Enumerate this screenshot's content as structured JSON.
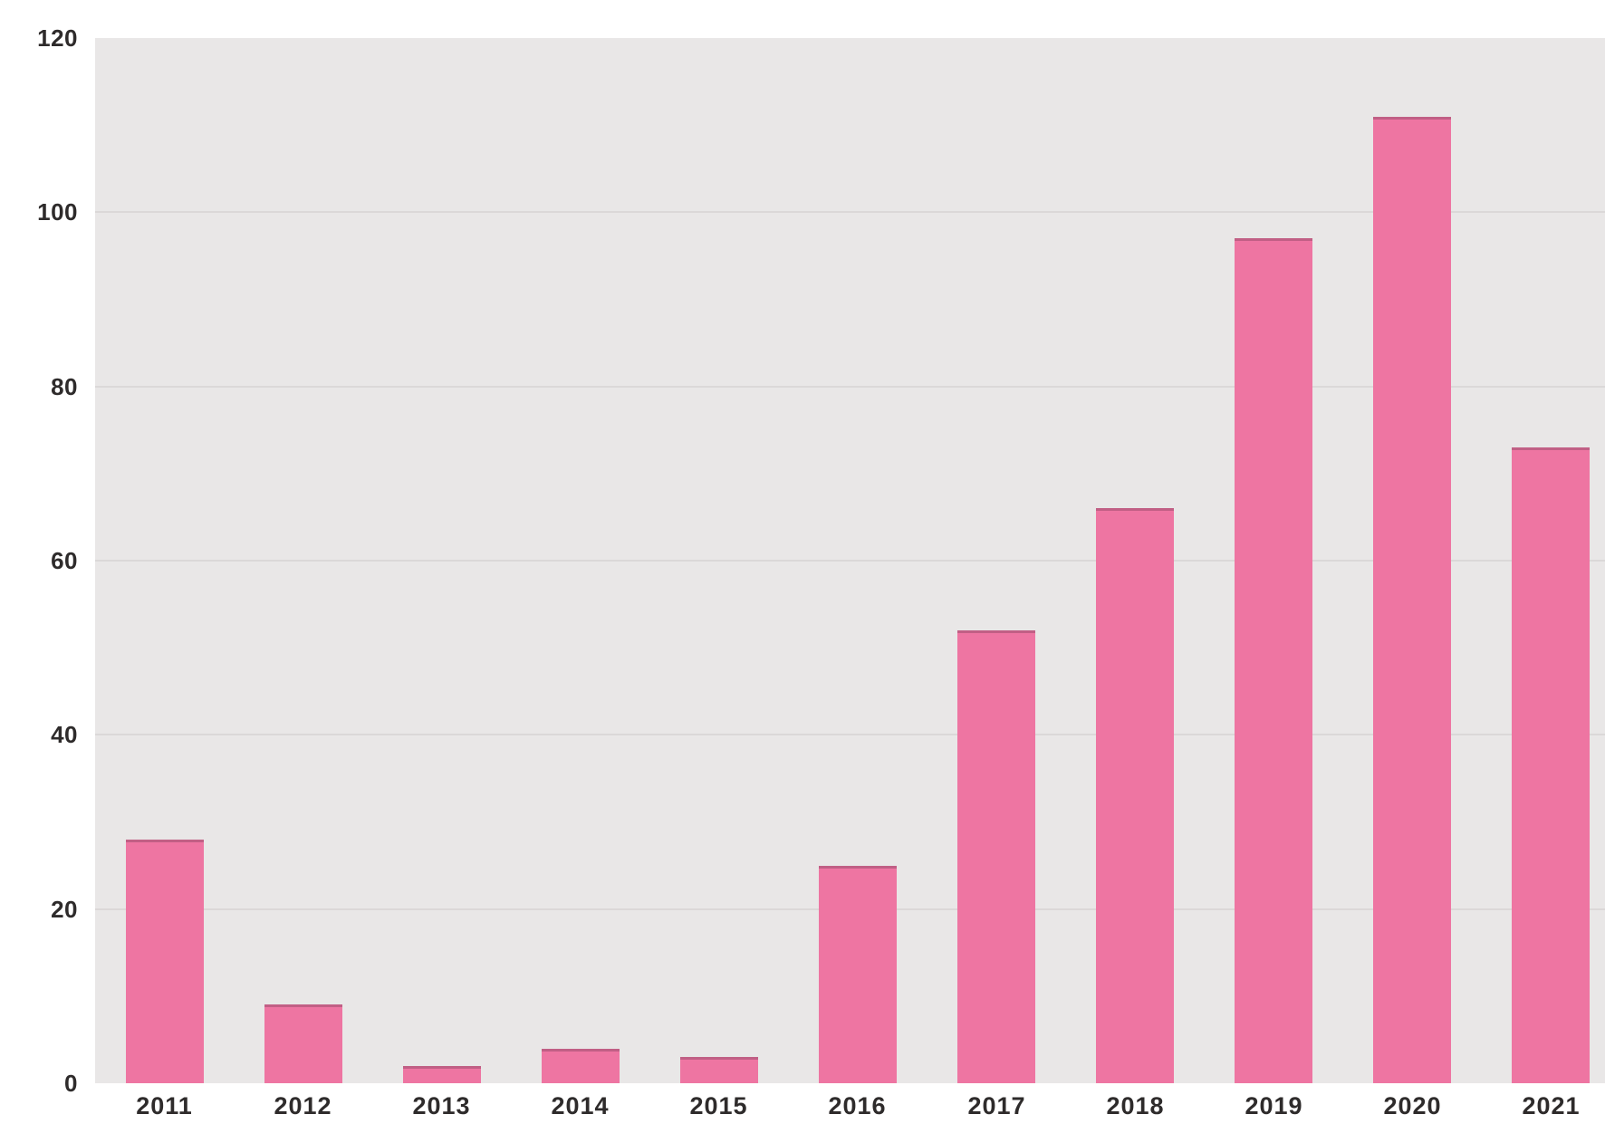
{
  "chart_data": {
    "type": "bar",
    "categories": [
      "2011",
      "2012",
      "2013",
      "2014",
      "2015",
      "2016",
      "2017",
      "2018",
      "2019",
      "2020",
      "2021"
    ],
    "values": [
      28,
      9,
      2,
      4,
      3,
      25,
      52,
      66,
      97,
      111,
      73
    ],
    "xlabel": "",
    "ylabel": "",
    "ylim": [
      0,
      120
    ],
    "yticks": [
      0,
      20,
      40,
      60,
      80,
      100,
      120
    ],
    "grid": true,
    "legend": false,
    "colors": {
      "bar": "#ee75a2",
      "bar_top_edge": "rgba(110, 55, 80, 0.35)",
      "plot_background": "#e9e7e7",
      "gridline": "#dbd8d8",
      "tick_text": "#2e2b2b",
      "page_background": "#ffffff"
    }
  }
}
